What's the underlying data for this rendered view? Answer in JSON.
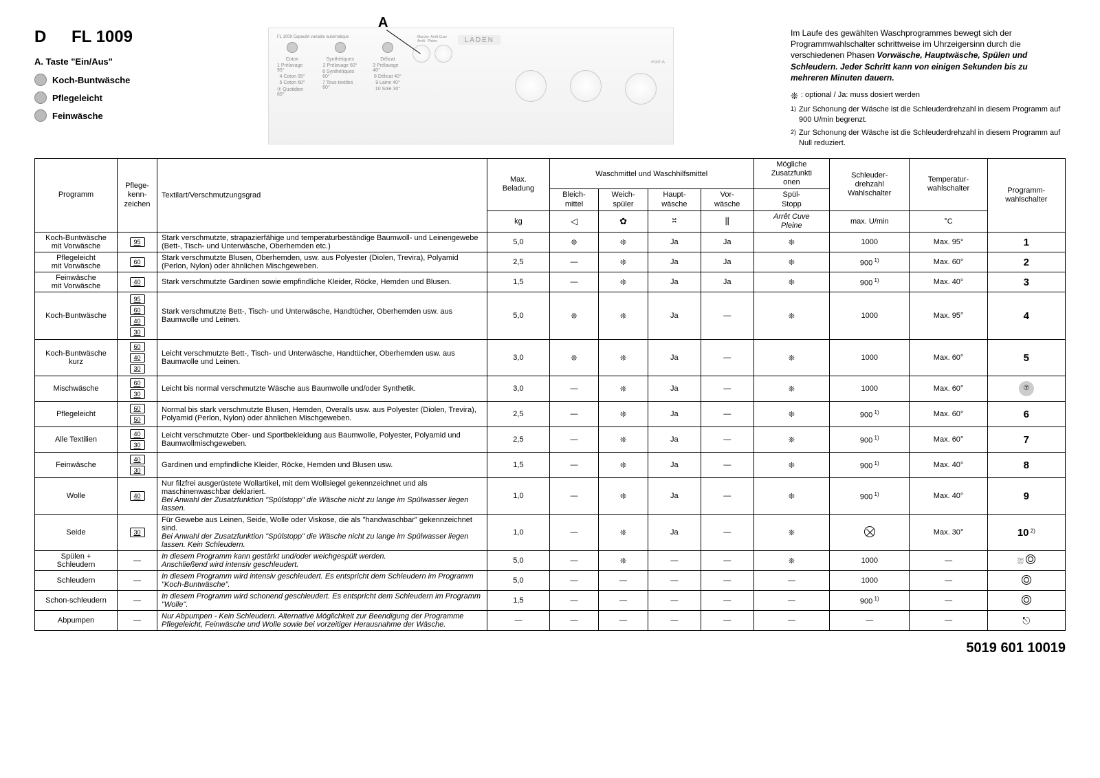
{
  "header": {
    "country_code": "D",
    "model": "FL 1009",
    "subtitle_a": "A. Taste \"Ein/Aus\"",
    "bullets": [
      {
        "label": "Koch-Buntwäsche"
      },
      {
        "label": "Pflegeleicht"
      },
      {
        "label": "Feinwäsche"
      }
    ],
    "panel_label": "A",
    "panel_small_text": "FL 1009  Capacité variable automatique",
    "panel_brand": "LADEN",
    "panel_cols": [
      {
        "title": "Coton",
        "lines": [
          "1 Prélavage 95°",
          "4 Coton 95°",
          "5 Coton 60°",
          "⑦ Quotidien 60°"
        ]
      },
      {
        "title": "Synthétiques",
        "lines": [
          "2 Prélavage 60°",
          "6 Synthétiques 60°",
          "7 Tous textiles 60°"
        ]
      },
      {
        "title": "Délicat",
        "lines": [
          "3 Prélavage 40°",
          "8 Délicat 40°",
          "9 Laine 40°",
          "10 Soie 30°"
        ]
      }
    ],
    "panel_buttons": "Marche  Arrêt Cuve\nArrêt   Pleine",
    "panel_right_a": "e/a/t A"
  },
  "notes": {
    "main": "Im Laufe des gewählten Waschprogrammes bewegt sich der Programmwahlschalter schrittweise im Uhrzeigersinn durch die verschiedenen Phasen ",
    "main_bold": "Vorwäsche, Hauptwäsche, Spülen und Schleudern. Jeder Schritt kann von einigen Sekunden bis zu mehreren Minuten dauern.",
    "fn_opt": ": optional / Ja: muss dosiert werden",
    "fn1_sup": "1)",
    "fn1": "Zur Schonung der Wäsche ist die Schleuderdrehzahl in diesem Programm auf 900 U/min begrenzt.",
    "fn2_sup": "2)",
    "fn2": "Zur Schonung der Wäsche ist die Schleuderdrehzahl in diesem Programm auf Null reduziert."
  },
  "table": {
    "head": {
      "programm": "Programm",
      "care": "Pflege-\nkenn-\nzeichen",
      "desc": "Textilart/Verschmutzungsgrad",
      "maxload": "Max.\nBeladung",
      "maxload_unit": "kg",
      "detergent_group": "Waschmittel und Waschhilfsmittel",
      "bleach": "Bleich-\nmittel",
      "softener": "Weich-\nspüler",
      "main_wash": "Haupt-\nwäsche",
      "pre_wash": "Vor-\nwäsche",
      "options": "Mögliche\nZusatzfunkti\nonen",
      "spul_stopp": "Spül-\nStopp",
      "spul_stopp2": "Arrêt Cuve\nPleine",
      "spin": "Schleuder-\ndrehzahl\nWahlschalter",
      "spin_unit": "max. U/min",
      "temp": "Temperatur-\nwahlschalter",
      "temp_unit": "°C",
      "prog_sel": "Programm-\nwahlschalter"
    },
    "rows": [
      {
        "programm": "Koch-Buntwäsche\nmit Vorwäsche",
        "care": [
          "95"
        ],
        "desc": "Stark verschmutzte, strapazierfähige und temperaturbeständige Baumwoll- und Leinengewebe (Bett-, Tisch- und Unterwäsche, Oberhemden etc.)",
        "load": "5,0",
        "bleach": "❊",
        "soft": "❊",
        "main": "Ja",
        "pre": "Ja",
        "opt": "❊",
        "spin": "1000",
        "spin_sup": "",
        "temp": "Max. 95°",
        "sel": "1"
      },
      {
        "programm": "Pflegeleicht\nmit Vorwäsche",
        "care": [
          "60"
        ],
        "desc": "Stark verschmutzte Blusen, Oberhemden, usw. aus Polyester (Diolen, Trevira), Polyamid (Perlon, Nylon) oder ähnlichen Mischgeweben.",
        "load": "2,5",
        "bleach": "—",
        "soft": "❊",
        "main": "Ja",
        "pre": "Ja",
        "opt": "❊",
        "spin": "900",
        "spin_sup": "1)",
        "temp": "Max. 60°",
        "sel": "2"
      },
      {
        "programm": "Feinwäsche\nmit Vorwäsche",
        "care": [
          "40"
        ],
        "desc": "Stark verschmutzte Gardinen sowie empfindliche Kleider, Röcke, Hemden und Blusen.",
        "load": "1,5",
        "bleach": "—",
        "soft": "❊",
        "main": "Ja",
        "pre": "Ja",
        "opt": "❊",
        "spin": "900",
        "spin_sup": "1)",
        "temp": "Max. 40°",
        "sel": "3"
      },
      {
        "programm": "Koch-Buntwäsche",
        "care": [
          "95",
          "60",
          "40",
          "30"
        ],
        "desc": "Stark verschmutzte Bett-, Tisch- und Unterwäsche, Handtücher, Oberhemden usw. aus Baumwolle und Leinen.",
        "load": "5,0",
        "bleach": "❊",
        "soft": "❊",
        "main": "Ja",
        "pre": "—",
        "opt": "❊",
        "spin": "1000",
        "spin_sup": "",
        "temp": "Max. 95°",
        "sel": "4"
      },
      {
        "programm": "Koch-Buntwäsche\nkurz",
        "care": [
          "60",
          "40",
          "30"
        ],
        "desc": "Leicht verschmutzte Bett-, Tisch- und Unterwäsche, Handtücher, Oberhemden usw. aus Baumwolle und Leinen.",
        "load": "3,0",
        "bleach": "❊",
        "soft": "❊",
        "main": "Ja",
        "pre": "—",
        "opt": "❊",
        "spin": "1000",
        "spin_sup": "",
        "temp": "Max. 60°",
        "sel": "5"
      },
      {
        "programm": "Mischwäsche",
        "care": [
          "60",
          "30"
        ],
        "desc": "Leicht bis normal verschmutzte Wäsche aus Baumwolle und/oder Synthetik.",
        "load": "3,0",
        "bleach": "—",
        "soft": "❊",
        "main": "Ja",
        "pre": "—",
        "opt": "❊",
        "spin": "1000",
        "spin_sup": "",
        "temp": "Max. 60°",
        "sel": "⑦",
        "grey": true
      },
      {
        "programm": "Pflegeleicht",
        "care": [
          "60",
          "50"
        ],
        "desc": "Normal bis stark verschmutzte Blusen, Hemden, Overalls usw. aus Polyester (Diolen, Trevira), Polyamid (Perlon, Nylon) oder ähnlichen Mischgeweben.",
        "load": "2,5",
        "bleach": "—",
        "soft": "❊",
        "main": "Ja",
        "pre": "—",
        "opt": "❊",
        "spin": "900",
        "spin_sup": "1)",
        "temp": "Max. 60°",
        "sel": "6"
      },
      {
        "programm": "Alle Textilien",
        "care": [
          "40",
          "30"
        ],
        "desc": "Leicht verschmutzte Ober- und Sportbekleidung aus Baumwolle, Polyester, Polyamid und Baumwollmischgeweben.",
        "load": "2,5",
        "bleach": "—",
        "soft": "❊",
        "main": "Ja",
        "pre": "—",
        "opt": "❊",
        "spin": "900",
        "spin_sup": "1)",
        "temp": "Max. 60°",
        "sel": "7"
      },
      {
        "programm": "Feinwäsche",
        "care": [
          "40",
          "30"
        ],
        "desc": "Gardinen und empfindliche Kleider, Röcke, Hemden und Blusen usw.",
        "load": "1,5",
        "bleach": "—",
        "soft": "❊",
        "main": "Ja",
        "pre": "—",
        "opt": "❊",
        "spin": "900",
        "spin_sup": "1)",
        "temp": "Max. 40°",
        "sel": "8"
      },
      {
        "programm": "Wolle",
        "care": [
          "40"
        ],
        "desc": "Nur filzfrei ausgerüstete Wollartikel, mit dem Wollsiegel gekennzeichnet und als maschinenwaschbar deklariert.",
        "desc_note": "Bei Anwahl der Zusatzfunktion \"Spülstopp\" die Wäsche nicht zu lange im Spülwasser liegen lassen.",
        "load": "1,0",
        "bleach": "—",
        "soft": "❊",
        "main": "Ja",
        "pre": "—",
        "opt": "❊",
        "spin": "900",
        "spin_sup": "1)",
        "temp": "Max. 40°",
        "sel": "9"
      },
      {
        "programm": "Seide",
        "care": [
          "30"
        ],
        "desc": "Für Gewebe aus Leinen, Seide, Wolle oder Viskose, die als \"handwaschbar\" gekennzeichnet sind.",
        "desc_note": "Bei Anwahl der Zusatzfunktion \"Spülstopp\" die Wäsche nicht zu lange im Spülwasser liegen lassen. Kein Schleudern.",
        "load": "1,0",
        "bleach": "—",
        "soft": "❊",
        "main": "Ja",
        "pre": "—",
        "opt": "❊",
        "spin": "nospin",
        "spin_sup": "",
        "temp": "Max. 30°",
        "sel": "10",
        "sel_sup": "2)"
      },
      {
        "programm": "Spülen +\nSchleudern",
        "care_dash": true,
        "desc_note_only": "In diesem Programm kann gestärkt und/oder weichgespült werden.\nAnschließend wird intensiv geschleudert.",
        "load": "5,0",
        "bleach": "—",
        "soft": "❊",
        "main": "—",
        "pre": "—",
        "opt": "❊",
        "spin": "1000",
        "spin_sup": "",
        "temp": "—",
        "sel": "rinse+spin"
      },
      {
        "programm": "Schleudern",
        "care_dash": true,
        "desc_note_only": "In diesem Programm wird intensiv geschleudert. Es entspricht dem Schleudern im Programm \"Koch-Buntwäsche\".",
        "load": "5,0",
        "bleach": "—",
        "soft": "—",
        "main": "—",
        "pre": "—",
        "opt": "—",
        "spin": "1000",
        "spin_sup": "",
        "temp": "—",
        "sel": "spin"
      },
      {
        "programm": "Schon-schleudern",
        "care_dash": true,
        "desc_note_only": "In diesem Programm wird schonend geschleudert. Es entspricht dem Schleudern im Programm \"Wolle\".",
        "load": "1,5",
        "bleach": "—",
        "soft": "—",
        "main": "—",
        "pre": "—",
        "opt": "—",
        "spin": "900",
        "spin_sup": "1)",
        "temp": "—",
        "sel": "spin-gentle"
      },
      {
        "programm": "Abpumpen",
        "care_dash": true,
        "desc_note_only": "Nur Abpumpen - Kein Schleudern. Alternative Möglichkeit zur Beendigung der Programme Pflegeleicht, Feinwäsche und Wolle sowie bei vorzeitiger Herausnahme der Wäsche.",
        "load": "—",
        "bleach": "—",
        "soft": "—",
        "main": "—",
        "pre": "—",
        "opt": "—",
        "spin": "—",
        "spin_sup": "",
        "temp": "—",
        "sel": "pump"
      }
    ]
  },
  "footer": "5019 601 10019"
}
